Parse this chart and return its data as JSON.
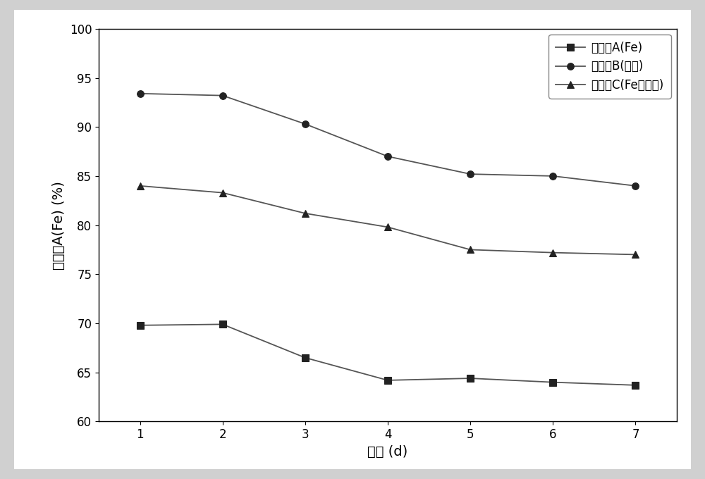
{
  "x": [
    1,
    2,
    3,
    4,
    5,
    6,
    7
  ],
  "series_A": [
    69.8,
    69.9,
    66.5,
    64.2,
    64.4,
    64.0,
    63.7
  ],
  "series_B": [
    93.4,
    93.2,
    90.3,
    87.0,
    85.2,
    85.0,
    84.0
  ],
  "series_C": [
    84.0,
    83.3,
    81.2,
    79.8,
    77.5,
    77.2,
    77.0
  ],
  "line_color": "#555555",
  "marker_color": "#222222",
  "marker_A": "s",
  "marker_B": "o",
  "marker_C": "^",
  "label_A": "反应器A(Fe)",
  "label_B": "反应器B(沸石)",
  "label_C": "反应器C(Fe加沸石)",
  "xlabel": "时间 (d)",
  "ylabel": "反应器A(Fe) (%)",
  "ylim": [
    60,
    100
  ],
  "xlim": [
    0.5,
    7.5
  ],
  "yticks": [
    60,
    65,
    70,
    75,
    80,
    85,
    90,
    95,
    100
  ],
  "xticks": [
    1,
    2,
    3,
    4,
    5,
    6,
    7
  ],
  "outer_bg_color": "#d0d0d0",
  "inner_bg_color": "#ffffff",
  "plot_area_color": "#ffffff",
  "border_color": "#000000",
  "marker_size": 7,
  "line_width": 1.3,
  "font_size_label": 14,
  "font_size_tick": 12,
  "font_size_legend": 12
}
